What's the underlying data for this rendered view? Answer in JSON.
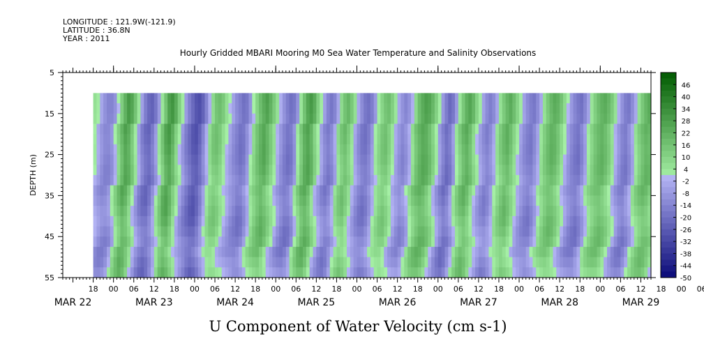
{
  "header": {
    "longitude": "LONGITUDE : 121.9W(-121.9)",
    "latitude": "LATITUDE : 36.8N",
    "year": "YEAR : 2011"
  },
  "chart_data": {
    "type": "heatmap",
    "title": "Hourly Gridded MBARI Mooring M0 Sea Water Temperature and Salinity Observations",
    "bottom_title": "U Component of Water Velocity (cm s-1)",
    "ylabel": "DEPTH (m)",
    "yticks": [
      "5",
      "15",
      "25",
      "35",
      "45",
      "55"
    ],
    "ylim": [
      5,
      55
    ],
    "y_inverted": true,
    "data_depth_range": [
      10,
      55
    ],
    "x_hour_ticks": [
      "18",
      "00",
      "06",
      "12",
      "18",
      "00",
      "06",
      "12",
      "18",
      "00",
      "06",
      "12",
      "18",
      "00",
      "06",
      "12",
      "18",
      "00",
      "06",
      "12",
      "18",
      "00",
      "06",
      "12",
      "18",
      "00",
      "06",
      "12",
      "18",
      "00",
      "06",
      "12"
    ],
    "x_day_labels": [
      "MAR 22",
      "MAR 23",
      "MAR 24",
      "MAR 25",
      "MAR 26",
      "MAR 27",
      "MAR 28",
      "MAR 29"
    ],
    "x_start": "MAR 22 09:00",
    "x_end": "MAR 29 15:00",
    "data_start": "MAR 22 18:00",
    "colorbar": {
      "labels": [
        "46",
        "40",
        "34",
        "28",
        "22",
        "16",
        "10",
        "4",
        "-2",
        "-8",
        "-14",
        "-20",
        "-26",
        "-32",
        "-38",
        "-44",
        "-50"
      ],
      "range": [
        -50,
        52
      ],
      "negative_color": "#0a0a78",
      "near_zero_negative_color": "#b4b4f4",
      "near_zero_positive_color": "#a6f0a6",
      "positive_color": "#005a00"
    },
    "u_profile_hourly": [
      6,
      2,
      -4,
      -10,
      -14,
      -14,
      -10,
      0,
      12,
      22,
      30,
      26,
      16,
      4,
      -6,
      -16,
      -22,
      -24,
      -18,
      -8,
      4,
      16,
      28,
      32,
      24,
      12,
      2,
      -8,
      -16,
      -22,
      -28,
      -30,
      -24,
      -14,
      -2,
      8,
      16,
      18,
      14,
      6,
      0,
      -6,
      -12,
      -16,
      -20,
      -18,
      -10,
      0,
      10,
      18,
      24,
      28,
      22,
      14,
      6,
      -2,
      -10,
      -16,
      -20,
      -18,
      -10,
      4,
      16,
      26,
      30,
      24,
      12,
      2,
      -6,
      -14,
      -18,
      -14,
      -4,
      8,
      16,
      20,
      14,
      6,
      -4,
      -12,
      -18,
      -20,
      -16,
      -8,
      2,
      10,
      16,
      18,
      12,
      4,
      -4,
      -10,
      -14,
      -10,
      -2,
      8,
      18,
      24,
      28,
      26,
      20,
      12,
      2,
      -8,
      -16,
      -22,
      -18,
      -8,
      4,
      14,
      22,
      26,
      20,
      10,
      2,
      -6,
      -12,
      -16,
      -12,
      -4,
      6,
      14,
      20,
      24,
      18,
      10,
      2,
      -6,
      -12,
      -16,
      -18,
      -12,
      -4,
      6,
      14,
      20,
      24,
      22,
      16,
      8,
      0,
      -8,
      -14,
      -18,
      -20,
      -14,
      -6,
      4,
      12,
      18,
      22,
      24,
      20,
      14,
      6,
      -2,
      -10,
      -16,
      -18,
      -12,
      -4,
      6,
      14,
      20,
      24,
      22,
      16,
      8,
      2,
      -4,
      -10,
      -14,
      -8,
      2,
      12,
      20,
      24,
      22,
      16,
      10
    ]
  }
}
